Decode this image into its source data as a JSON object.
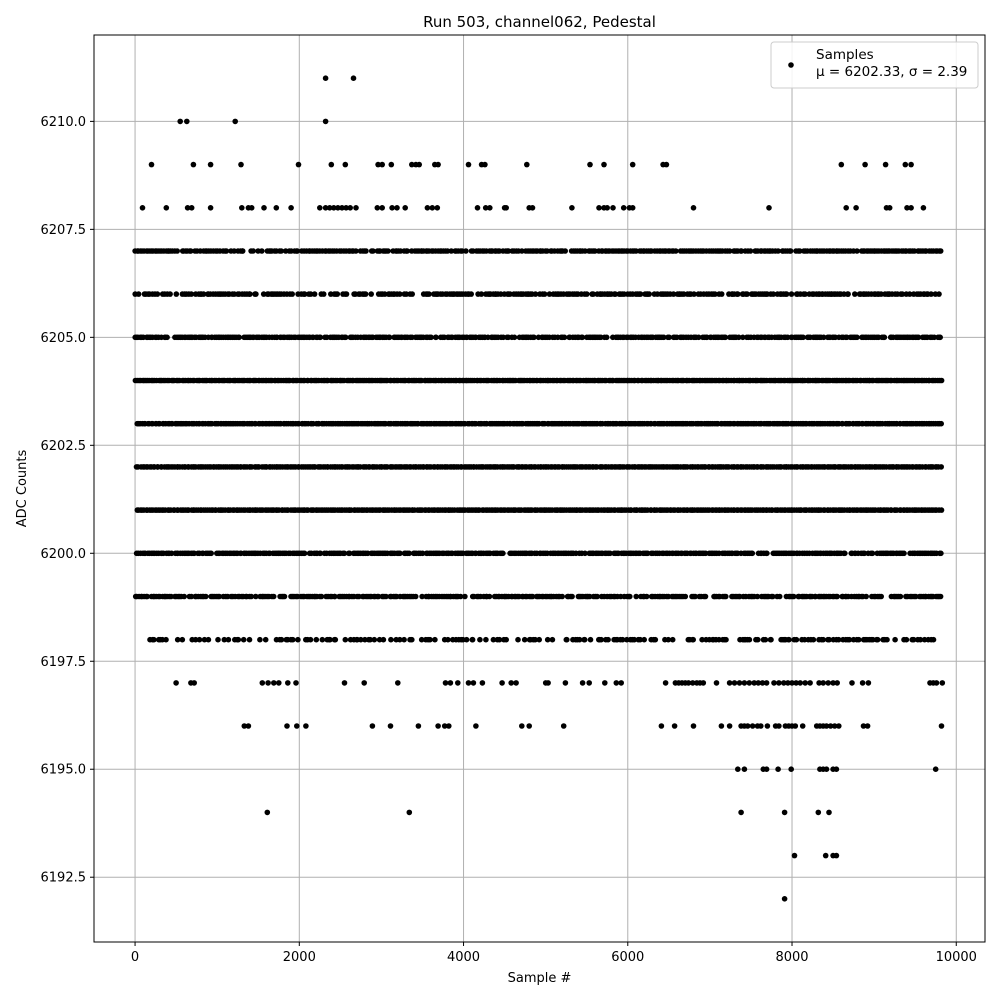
{
  "chart_data": {
    "type": "scatter",
    "title": "Run 503, channel062, Pedestal",
    "xlabel": "Sample #",
    "ylabel": "ADC Counts",
    "xlim": [
      -500,
      10350
    ],
    "ylim": [
      6191.0,
      6212.0
    ],
    "xticks": [
      0,
      2000,
      4000,
      6000,
      8000,
      10000
    ],
    "xtick_labels": [
      "0",
      "2000",
      "4000",
      "6000",
      "8000",
      "10000"
    ],
    "yticks": [
      6192.5,
      6195.0,
      6197.5,
      6200.0,
      6202.5,
      6205.0,
      6207.5,
      6210.0
    ],
    "ytick_labels": [
      "6192.5",
      "6195.0",
      "6197.5",
      "6200.0",
      "6202.5",
      "6205.0",
      "6207.5",
      "6210.0"
    ],
    "grid": true,
    "legend_position": "top-right",
    "marker_color": "#000000",
    "series": [
      {
        "name": "Samples",
        "legend_stats": "μ = 6202.33, σ = 2.39",
        "sample_count": 9850,
        "dense_levels": [
          {
            "y": 6207,
            "x_range": [
              0,
              9830
            ],
            "density": 0.8
          },
          {
            "y": 6206,
            "x_range": [
              0,
              9830
            ],
            "density": 0.7
          },
          {
            "y": 6205,
            "x_range": [
              0,
              9830
            ],
            "density": 0.9
          },
          {
            "y": 6204,
            "x_range": [
              0,
              9830
            ],
            "density": 1.0
          },
          {
            "y": 6203,
            "x_range": [
              0,
              9830
            ],
            "density": 1.0
          },
          {
            "y": 6202,
            "x_range": [
              0,
              9830
            ],
            "density": 1.0
          },
          {
            "y": 6201,
            "x_range": [
              0,
              9830
            ],
            "density": 1.0
          },
          {
            "y": 6200,
            "x_range": [
              0,
              9830
            ],
            "density": 0.9
          },
          {
            "y": 6199,
            "x_range": [
              0,
              9830
            ],
            "density": 0.8
          },
          {
            "y": 6198,
            "x_range": [
              160,
              9830
            ],
            "density": 0.45
          }
        ],
        "points": [
          {
            "x": 2320,
            "y": 6211
          },
          {
            "x": 2660,
            "y": 6211
          },
          {
            "x": 550,
            "y": 6210
          },
          {
            "x": 630,
            "y": 6210
          },
          {
            "x": 1220,
            "y": 6210
          },
          {
            "x": 2320,
            "y": 6210
          },
          {
            "x": 200,
            "y": 6209
          },
          {
            "x": 710,
            "y": 6209
          },
          {
            "x": 920,
            "y": 6209
          },
          {
            "x": 1290,
            "y": 6209
          },
          {
            "x": 1990,
            "y": 6209
          },
          {
            "x": 2390,
            "y": 6209
          },
          {
            "x": 2560,
            "y": 6209
          },
          {
            "x": 2960,
            "y": 6209
          },
          {
            "x": 3010,
            "y": 6209
          },
          {
            "x": 3120,
            "y": 6209
          },
          {
            "x": 3370,
            "y": 6209
          },
          {
            "x": 3420,
            "y": 6209
          },
          {
            "x": 3460,
            "y": 6209
          },
          {
            "x": 3650,
            "y": 6209
          },
          {
            "x": 3690,
            "y": 6209
          },
          {
            "x": 4060,
            "y": 6209
          },
          {
            "x": 4220,
            "y": 6209
          },
          {
            "x": 4260,
            "y": 6209
          },
          {
            "x": 4770,
            "y": 6209
          },
          {
            "x": 5540,
            "y": 6209
          },
          {
            "x": 5710,
            "y": 6209
          },
          {
            "x": 6060,
            "y": 6209
          },
          {
            "x": 6430,
            "y": 6209
          },
          {
            "x": 6470,
            "y": 6209
          },
          {
            "x": 8600,
            "y": 6209
          },
          {
            "x": 8890,
            "y": 6209
          },
          {
            "x": 9140,
            "y": 6209
          },
          {
            "x": 9380,
            "y": 6209
          },
          {
            "x": 9450,
            "y": 6209
          },
          {
            "x": 90,
            "y": 6208
          },
          {
            "x": 380,
            "y": 6208
          },
          {
            "x": 640,
            "y": 6208
          },
          {
            "x": 690,
            "y": 6208
          },
          {
            "x": 920,
            "y": 6208
          },
          {
            "x": 1300,
            "y": 6208
          },
          {
            "x": 1380,
            "y": 6208
          },
          {
            "x": 1420,
            "y": 6208
          },
          {
            "x": 1570,
            "y": 6208
          },
          {
            "x": 1720,
            "y": 6208
          },
          {
            "x": 1900,
            "y": 6208
          },
          {
            "x": 2250,
            "y": 6208
          },
          {
            "x": 2320,
            "y": 6208
          },
          {
            "x": 2370,
            "y": 6208
          },
          {
            "x": 2420,
            "y": 6208
          },
          {
            "x": 2470,
            "y": 6208
          },
          {
            "x": 2520,
            "y": 6208
          },
          {
            "x": 2570,
            "y": 6208
          },
          {
            "x": 2620,
            "y": 6208
          },
          {
            "x": 2690,
            "y": 6208
          },
          {
            "x": 2950,
            "y": 6208
          },
          {
            "x": 3010,
            "y": 6208
          },
          {
            "x": 3130,
            "y": 6208
          },
          {
            "x": 3190,
            "y": 6208
          },
          {
            "x": 3290,
            "y": 6208
          },
          {
            "x": 3560,
            "y": 6208
          },
          {
            "x": 3620,
            "y": 6208
          },
          {
            "x": 3680,
            "y": 6208
          },
          {
            "x": 4170,
            "y": 6208
          },
          {
            "x": 4270,
            "y": 6208
          },
          {
            "x": 4320,
            "y": 6208
          },
          {
            "x": 4500,
            "y": 6208
          },
          {
            "x": 4520,
            "y": 6208
          },
          {
            "x": 4800,
            "y": 6208
          },
          {
            "x": 4840,
            "y": 6208
          },
          {
            "x": 5320,
            "y": 6208
          },
          {
            "x": 5650,
            "y": 6208
          },
          {
            "x": 5710,
            "y": 6208
          },
          {
            "x": 5750,
            "y": 6208
          },
          {
            "x": 5820,
            "y": 6208
          },
          {
            "x": 5950,
            "y": 6208
          },
          {
            "x": 6020,
            "y": 6208
          },
          {
            "x": 6060,
            "y": 6208
          },
          {
            "x": 6800,
            "y": 6208
          },
          {
            "x": 7720,
            "y": 6208
          },
          {
            "x": 8660,
            "y": 6208
          },
          {
            "x": 8780,
            "y": 6208
          },
          {
            "x": 9150,
            "y": 6208
          },
          {
            "x": 9190,
            "y": 6208
          },
          {
            "x": 9400,
            "y": 6208
          },
          {
            "x": 9450,
            "y": 6208
          },
          {
            "x": 9600,
            "y": 6208
          },
          {
            "x": 500,
            "y": 6197
          },
          {
            "x": 680,
            "y": 6197
          },
          {
            "x": 720,
            "y": 6197
          },
          {
            "x": 1550,
            "y": 6197
          },
          {
            "x": 1620,
            "y": 6197
          },
          {
            "x": 1690,
            "y": 6197
          },
          {
            "x": 1750,
            "y": 6197
          },
          {
            "x": 1860,
            "y": 6197
          },
          {
            "x": 1960,
            "y": 6197
          },
          {
            "x": 2550,
            "y": 6197
          },
          {
            "x": 2790,
            "y": 6197
          },
          {
            "x": 3200,
            "y": 6197
          },
          {
            "x": 3780,
            "y": 6197
          },
          {
            "x": 3840,
            "y": 6197
          },
          {
            "x": 3930,
            "y": 6197
          },
          {
            "x": 4060,
            "y": 6197
          },
          {
            "x": 4120,
            "y": 6197
          },
          {
            "x": 4230,
            "y": 6197
          },
          {
            "x": 4470,
            "y": 6197
          },
          {
            "x": 4580,
            "y": 6197
          },
          {
            "x": 4640,
            "y": 6197
          },
          {
            "x": 5000,
            "y": 6197
          },
          {
            "x": 5030,
            "y": 6197
          },
          {
            "x": 5240,
            "y": 6197
          },
          {
            "x": 5450,
            "y": 6197
          },
          {
            "x": 5530,
            "y": 6197
          },
          {
            "x": 5720,
            "y": 6197
          },
          {
            "x": 5860,
            "y": 6197
          },
          {
            "x": 5920,
            "y": 6197
          },
          {
            "x": 6460,
            "y": 6197
          },
          {
            "x": 6580,
            "y": 6197
          },
          {
            "x": 6620,
            "y": 6197
          },
          {
            "x": 6660,
            "y": 6197
          },
          {
            "x": 6700,
            "y": 6197
          },
          {
            "x": 6740,
            "y": 6197
          },
          {
            "x": 6790,
            "y": 6197
          },
          {
            "x": 6840,
            "y": 6197
          },
          {
            "x": 6880,
            "y": 6197
          },
          {
            "x": 6920,
            "y": 6197
          },
          {
            "x": 7080,
            "y": 6197
          },
          {
            "x": 7240,
            "y": 6197
          },
          {
            "x": 7300,
            "y": 6197
          },
          {
            "x": 7360,
            "y": 6197
          },
          {
            "x": 7420,
            "y": 6197
          },
          {
            "x": 7480,
            "y": 6197
          },
          {
            "x": 7540,
            "y": 6197
          },
          {
            "x": 7590,
            "y": 6197
          },
          {
            "x": 7640,
            "y": 6197
          },
          {
            "x": 7690,
            "y": 6197
          },
          {
            "x": 7780,
            "y": 6197
          },
          {
            "x": 7840,
            "y": 6197
          },
          {
            "x": 7900,
            "y": 6197
          },
          {
            "x": 7950,
            "y": 6197
          },
          {
            "x": 8000,
            "y": 6197
          },
          {
            "x": 8050,
            "y": 6197
          },
          {
            "x": 8100,
            "y": 6197
          },
          {
            "x": 8160,
            "y": 6197
          },
          {
            "x": 8220,
            "y": 6197
          },
          {
            "x": 8330,
            "y": 6197
          },
          {
            "x": 8380,
            "y": 6197
          },
          {
            "x": 8440,
            "y": 6197
          },
          {
            "x": 8500,
            "y": 6197
          },
          {
            "x": 8550,
            "y": 6197
          },
          {
            "x": 8730,
            "y": 6197
          },
          {
            "x": 8860,
            "y": 6197
          },
          {
            "x": 8930,
            "y": 6197
          },
          {
            "x": 9680,
            "y": 6197
          },
          {
            "x": 9720,
            "y": 6197
          },
          {
            "x": 9760,
            "y": 6197
          },
          {
            "x": 9830,
            "y": 6197
          },
          {
            "x": 1330,
            "y": 6196
          },
          {
            "x": 1380,
            "y": 6196
          },
          {
            "x": 1850,
            "y": 6196
          },
          {
            "x": 1970,
            "y": 6196
          },
          {
            "x": 2080,
            "y": 6196
          },
          {
            "x": 2890,
            "y": 6196
          },
          {
            "x": 3110,
            "y": 6196
          },
          {
            "x": 3450,
            "y": 6196
          },
          {
            "x": 3690,
            "y": 6196
          },
          {
            "x": 3770,
            "y": 6196
          },
          {
            "x": 3820,
            "y": 6196
          },
          {
            "x": 4150,
            "y": 6196
          },
          {
            "x": 4710,
            "y": 6196
          },
          {
            "x": 4800,
            "y": 6196
          },
          {
            "x": 5220,
            "y": 6196
          },
          {
            "x": 6410,
            "y": 6196
          },
          {
            "x": 6570,
            "y": 6196
          },
          {
            "x": 6800,
            "y": 6196
          },
          {
            "x": 7140,
            "y": 6196
          },
          {
            "x": 7240,
            "y": 6196
          },
          {
            "x": 7380,
            "y": 6196
          },
          {
            "x": 7420,
            "y": 6196
          },
          {
            "x": 7460,
            "y": 6196
          },
          {
            "x": 7520,
            "y": 6196
          },
          {
            "x": 7580,
            "y": 6196
          },
          {
            "x": 7620,
            "y": 6196
          },
          {
            "x": 7700,
            "y": 6196
          },
          {
            "x": 7800,
            "y": 6196
          },
          {
            "x": 7840,
            "y": 6196
          },
          {
            "x": 7920,
            "y": 6196
          },
          {
            "x": 7960,
            "y": 6196
          },
          {
            "x": 8000,
            "y": 6196
          },
          {
            "x": 8040,
            "y": 6196
          },
          {
            "x": 8130,
            "y": 6196
          },
          {
            "x": 8300,
            "y": 6196
          },
          {
            "x": 8340,
            "y": 6196
          },
          {
            "x": 8380,
            "y": 6196
          },
          {
            "x": 8420,
            "y": 6196
          },
          {
            "x": 8470,
            "y": 6196
          },
          {
            "x": 8520,
            "y": 6196
          },
          {
            "x": 8570,
            "y": 6196
          },
          {
            "x": 8870,
            "y": 6196
          },
          {
            "x": 8920,
            "y": 6196
          },
          {
            "x": 9820,
            "y": 6196
          },
          {
            "x": 7340,
            "y": 6195
          },
          {
            "x": 7420,
            "y": 6195
          },
          {
            "x": 7650,
            "y": 6195
          },
          {
            "x": 7690,
            "y": 6195
          },
          {
            "x": 7830,
            "y": 6195
          },
          {
            "x": 7990,
            "y": 6195
          },
          {
            "x": 8340,
            "y": 6195
          },
          {
            "x": 8380,
            "y": 6195
          },
          {
            "x": 8420,
            "y": 6195
          },
          {
            "x": 8500,
            "y": 6195
          },
          {
            "x": 8540,
            "y": 6195
          },
          {
            "x": 9750,
            "y": 6195
          },
          {
            "x": 1610,
            "y": 6194
          },
          {
            "x": 3340,
            "y": 6194
          },
          {
            "x": 7380,
            "y": 6194
          },
          {
            "x": 7910,
            "y": 6194
          },
          {
            "x": 8320,
            "y": 6194
          },
          {
            "x": 8450,
            "y": 6194
          },
          {
            "x": 8030,
            "y": 6193
          },
          {
            "x": 8410,
            "y": 6193
          },
          {
            "x": 8500,
            "y": 6193
          },
          {
            "x": 8540,
            "y": 6193
          },
          {
            "x": 7910,
            "y": 6192
          }
        ]
      }
    ]
  }
}
